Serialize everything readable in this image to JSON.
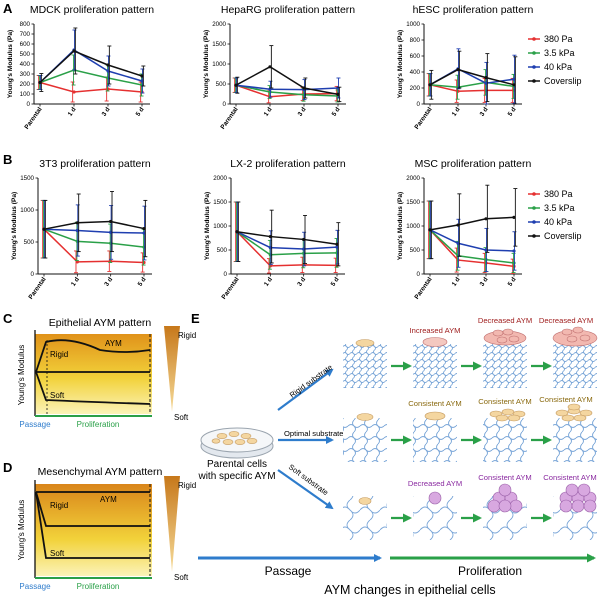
{
  "panel_labels": {
    "A": "A",
    "B": "B",
    "C": "C",
    "D": "D",
    "E": "E"
  },
  "colors": {
    "s380": "#e53030",
    "s3_5": "#2aa048",
    "s40": "#1f3fb0",
    "coverslip": "#111111",
    "arrow_blue": "#2e7ccc",
    "arrow_green": "#2aa048"
  },
  "legend": [
    "380 Pa",
    "3.5 kPa",
    "40 kPa",
    "Coverslip"
  ],
  "chart_data": [
    {
      "type": "line",
      "title": "MDCK proliferation pattern",
      "ylabel": "Young's Modulus (Pa)",
      "categories": [
        "Parental",
        "1 d",
        "3 d",
        "5 d"
      ],
      "ylim": [
        0,
        800
      ],
      "yticks": [
        "0",
        "100",
        "200",
        "300",
        "400",
        "500",
        "600",
        "700",
        "800"
      ],
      "series": [
        {
          "name": "380 Pa",
          "values": [
            215,
            120,
            150,
            120
          ],
          "err": [
            70,
            100,
            120,
            100
          ]
        },
        {
          "name": "3.5 kPa",
          "values": [
            215,
            340,
            260,
            190
          ],
          "err": [
            70,
            150,
            130,
            110
          ]
        },
        {
          "name": "40 kPa",
          "values": [
            215,
            540,
            330,
            230
          ],
          "err": [
            70,
            200,
            150,
            120
          ]
        },
        {
          "name": "Coverslip",
          "values": [
            215,
            530,
            390,
            280
          ],
          "err": [
            90,
            230,
            190,
            100
          ]
        }
      ]
    },
    {
      "type": "line",
      "title": "HepaRG proliferation pattern",
      "ylabel": "Young's Modulus (Pa)",
      "categories": [
        "Parental",
        "1 d",
        "3 d",
        "5 d"
      ],
      "ylim": [
        0,
        2000
      ],
      "yticks": [
        "0",
        "500",
        "1000",
        "1500",
        "2000"
      ],
      "series": [
        {
          "name": "380 Pa",
          "values": [
            470,
            180,
            250,
            260
          ],
          "err": [
            180,
            150,
            160,
            180
          ]
        },
        {
          "name": "3.5 kPa",
          "values": [
            470,
            300,
            230,
            200
          ],
          "err": [
            180,
            160,
            160,
            150
          ]
        },
        {
          "name": "40 kPa",
          "values": [
            470,
            370,
            360,
            400
          ],
          "err": [
            180,
            200,
            250,
            250
          ]
        },
        {
          "name": "Coverslip",
          "values": [
            470,
            930,
            400,
            240
          ],
          "err": [
            200,
            530,
            250,
            180
          ]
        }
      ]
    },
    {
      "type": "line",
      "title": "hESC proliferation pattern",
      "ylabel": "Young's Modulus (Pa)",
      "categories": [
        "Parental",
        "1 d",
        "3 d",
        "5 d"
      ],
      "ylim": [
        0,
        1000
      ],
      "yticks": [
        "0",
        "200",
        "400",
        "600",
        "800",
        "1000"
      ],
      "series": [
        {
          "name": "380 Pa",
          "values": [
            240,
            160,
            170,
            170
          ],
          "err": [
            140,
            140,
            150,
            150
          ]
        },
        {
          "name": "3.5 kPa",
          "values": [
            240,
            210,
            270,
            220
          ],
          "err": [
            140,
            150,
            160,
            150
          ]
        },
        {
          "name": "40 kPa",
          "values": [
            240,
            440,
            260,
            310
          ],
          "err": [
            140,
            250,
            260,
            300
          ]
        },
        {
          "name": "Coverslip",
          "values": [
            240,
            430,
            330,
            240
          ],
          "err": [
            180,
            230,
            300,
            350
          ]
        }
      ]
    },
    {
      "type": "line",
      "title": "3T3 proliferation pattern",
      "ylabel": "Young's Modulus (Pa)",
      "categories": [
        "Parental",
        "1 d",
        "3 d",
        "5 d"
      ],
      "ylim": [
        0,
        1500
      ],
      "yticks": [
        "0",
        "500",
        "1000",
        "1500"
      ],
      "series": [
        {
          "name": "380 Pa",
          "values": [
            700,
            190,
            200,
            180
          ],
          "err": [
            450,
            170,
            160,
            150
          ]
        },
        {
          "name": "3.5 kPa",
          "values": [
            700,
            510,
            480,
            420
          ],
          "err": [
            450,
            300,
            300,
            280
          ]
        },
        {
          "name": "40 kPa",
          "values": [
            700,
            680,
            650,
            640
          ],
          "err": [
            450,
            400,
            420,
            420
          ]
        },
        {
          "name": "Coverslip",
          "values": [
            700,
            800,
            820,
            710
          ],
          "err": [
            450,
            450,
            470,
            440
          ]
        }
      ]
    },
    {
      "type": "line",
      "title": "LX-2 proliferation pattern",
      "ylabel": "Young's Modulus (Pa)",
      "categories": [
        "Parental",
        "1 d",
        "3 d",
        "5 d"
      ],
      "ylim": [
        0,
        2000
      ],
      "yticks": [
        "0",
        "500",
        "1000",
        "1500",
        "2000"
      ],
      "series": [
        {
          "name": "380 Pa",
          "values": [
            880,
            170,
            190,
            180
          ],
          "err": [
            620,
            150,
            160,
            150
          ]
        },
        {
          "name": "3.5 kPa",
          "values": [
            880,
            400,
            430,
            440
          ],
          "err": [
            620,
            300,
            300,
            300
          ]
        },
        {
          "name": "40 kPa",
          "values": [
            880,
            550,
            520,
            560
          ],
          "err": [
            620,
            350,
            350,
            350
          ]
        },
        {
          "name": "Coverslip",
          "values": [
            880,
            780,
            720,
            620
          ],
          "err": [
            620,
            550,
            500,
            450
          ]
        }
      ]
    },
    {
      "type": "line",
      "title": "MSC proliferation pattern",
      "ylabel": "Young's Modulus (Pa)",
      "categories": [
        "Parental",
        "1 d",
        "3 d",
        "5 d"
      ],
      "ylim": [
        0,
        2000
      ],
      "yticks": [
        "0",
        "500",
        "1000",
        "1500",
        "2000"
      ],
      "series": [
        {
          "name": "380 Pa",
          "values": [
            920,
            290,
            230,
            160
          ],
          "err": [
            600,
            250,
            200,
            150
          ]
        },
        {
          "name": "3.5 kPa",
          "values": [
            920,
            380,
            300,
            230
          ],
          "err": [
            600,
            300,
            250,
            200
          ]
        },
        {
          "name": "40 kPa",
          "values": [
            920,
            640,
            500,
            480
          ],
          "err": [
            600,
            500,
            450,
            400
          ]
        },
        {
          "name": "Coverslip",
          "values": [
            920,
            1020,
            1150,
            1180
          ],
          "err": [
            600,
            650,
            700,
            600
          ]
        }
      ]
    }
  ],
  "schematic_C": {
    "title": "Epithelial AYM pattern",
    "ylabel": "Young's Modulus",
    "rigid": "Rigid",
    "soft": "Soft",
    "aym": "AYM",
    "passage": "Passage",
    "proliferation": "Proliferation",
    "scale_top": "Rigid",
    "scale_bottom": "Soft"
  },
  "schematic_D": {
    "title": "Mesenchymal AYM pattern",
    "ylabel": "Young's Modulus",
    "rigid": "Rigid",
    "soft": "Soft",
    "aym": "AYM",
    "passage": "Passage",
    "proliferation": "Proliferation",
    "scale_top": "Rigid",
    "scale_bottom": "Soft"
  },
  "panel_E": {
    "parental": [
      "Parental cells",
      "with specific AYM"
    ],
    "rigid_substrate": "Rigid substrate",
    "optimal_substrate": "Optimal substrate",
    "soft_substrate": "Soft substrate",
    "row1": [
      "Increased AYM",
      "Decreased AYM",
      "Decreased AYM"
    ],
    "row2": [
      "Consistent AYM",
      "Consistent AYM",
      "Consistent AYM"
    ],
    "row3": [
      "Decreased AYM",
      "Consistent AYM",
      "Consistent AYM"
    ],
    "passage": "Passage",
    "proliferation": "Proliferation",
    "title": "AYM changes in epithelial cells"
  }
}
